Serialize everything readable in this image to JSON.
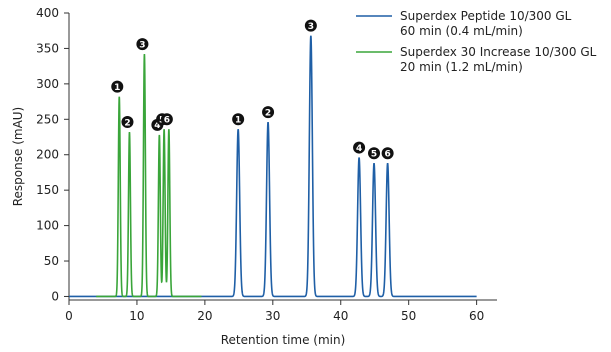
{
  "chart_data": {
    "type": "line",
    "xlabel": "Retention time (min)",
    "ylabel": "Response (mAU)",
    "xlim": [
      0,
      63
    ],
    "ylim": [
      -5,
      400
    ],
    "xticks": [
      0,
      10,
      20,
      30,
      40,
      50,
      60
    ],
    "yticks": [
      0,
      50,
      100,
      150,
      200,
      250,
      300,
      350,
      400
    ],
    "legend_position": "top-right",
    "series": [
      {
        "name": "Superdex Peptide 10/300 GL",
        "name_line2": "60 min (0.4 mL/min)",
        "color": "#1f5fa6",
        "x_range": [
          0,
          60
        ],
        "baseline": 0,
        "peaks": [
          {
            "label": "1",
            "x": 24.9,
            "y": 236
          },
          {
            "label": "2",
            "x": 29.3,
            "y": 246
          },
          {
            "label": "3",
            "x": 35.6,
            "y": 368
          },
          {
            "label": "4",
            "x": 42.7,
            "y": 196
          },
          {
            "label": "5",
            "x": 44.9,
            "y": 188
          },
          {
            "label": "6",
            "x": 46.9,
            "y": 188
          }
        ]
      },
      {
        "name": "Superdex 30 Increase 10/300 GL",
        "name_line2": "20 min (1.2 mL/min)",
        "color": "#3aa53a",
        "x_range": [
          0,
          20
        ],
        "baseline": 0,
        "peaks": [
          {
            "label": "1",
            "x": 7.4,
            "y": 282
          },
          {
            "label": "2",
            "x": 8.9,
            "y": 232
          },
          {
            "label": "3",
            "x": 11.1,
            "y": 342
          },
          {
            "label": "4",
            "x": 13.3,
            "y": 228
          },
          {
            "label": "5",
            "x": 14.0,
            "y": 236
          },
          {
            "label": "6",
            "x": 14.7,
            "y": 236
          }
        ]
      }
    ]
  }
}
